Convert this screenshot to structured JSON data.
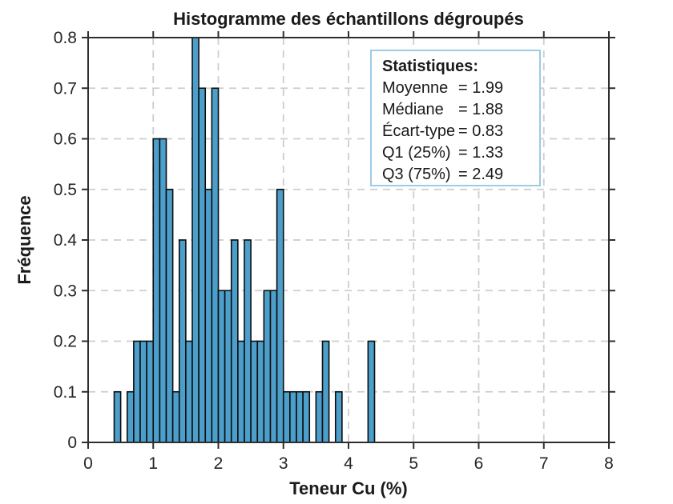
{
  "chart_data": {
    "type": "bar",
    "title": "Histogramme des échantillons dégroupés",
    "xlabel": "Teneur Cu (%)",
    "ylabel": "Fréquence",
    "xlim": [
      0,
      8
    ],
    "ylim": [
      0,
      0.8
    ],
    "xticks": [
      0,
      1,
      2,
      3,
      4,
      5,
      6,
      7,
      8
    ],
    "yticks": [
      0,
      0.1,
      0.2,
      0.3,
      0.4,
      0.5,
      0.6,
      0.7,
      0.8
    ],
    "grid": true,
    "legend_position": "upper-right-inside",
    "bin_start": 0.4,
    "bin_width": 0.1,
    "frequencies": [
      0.1,
      0,
      0.1,
      0.2,
      0.2,
      0.2,
      0.6,
      0.6,
      0.5,
      0.1,
      0.4,
      0.2,
      0.8,
      0.7,
      0.5,
      0.7,
      0.3,
      0.3,
      0.4,
      0.2,
      0.4,
      0.2,
      0.2,
      0.3,
      0.3,
      0.5,
      0.1,
      0.1,
      0.1,
      0.1,
      0,
      0.1,
      0.2,
      0,
      0.1,
      0,
      0,
      0,
      0,
      0.2
    ]
  },
  "colors": {
    "bar_fill": "#4c9fcb",
    "bar_edge": "#0d0d0d",
    "grid_line": "#cdcdcd",
    "axis_line": "#2e2e2e",
    "tick_text": "#262626",
    "stats_border": "#9ccbe6",
    "background": "#ffffff"
  },
  "stats_box": {
    "title": "Statistiques:",
    "rows": [
      {
        "label": "Moyenne",
        "value": "= 1.99"
      },
      {
        "label": "Médiane",
        "value": "= 1.88"
      },
      {
        "label": "Écart-type",
        "value": "= 0.83"
      },
      {
        "label": "Q1 (25%)",
        "value": "= 1.33"
      },
      {
        "label": "Q3 (75%)",
        "value": "= 2.49"
      }
    ]
  }
}
